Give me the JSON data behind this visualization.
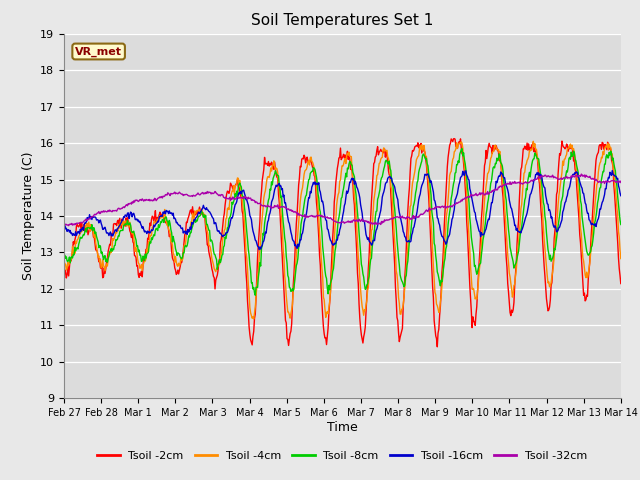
{
  "title": "Soil Temperatures Set 1",
  "xlabel": "Time",
  "ylabel": "Soil Temperature (C)",
  "ylim": [
    9.0,
    19.0
  ],
  "yticks": [
    9.0,
    10.0,
    11.0,
    12.0,
    13.0,
    14.0,
    15.0,
    16.0,
    17.0,
    18.0,
    19.0
  ],
  "x_tick_labels": [
    "Feb 27",
    "Feb 28",
    "Mar 1",
    "Mar 2",
    "Mar 3",
    "Mar 4",
    "Mar 5",
    "Mar 6",
    "Mar 7",
    "Mar 8",
    "Mar 9",
    "Mar 10",
    "Mar 11",
    "Mar 12",
    "Mar 13",
    "Mar 14"
  ],
  "annotation_text": "VR_met",
  "annotation_color": "#8B0000",
  "annotation_bg": "#FFFACD",
  "annotation_border": "#8B6914",
  "legend_labels": [
    "Tsoil -2cm",
    "Tsoil -4cm",
    "Tsoil -8cm",
    "Tsoil -16cm",
    "Tsoil -32cm"
  ],
  "line_colors": [
    "#FF0000",
    "#FF8C00",
    "#00CC00",
    "#0000CC",
    "#AA00AA"
  ],
  "bg_color": "#E8E8E8",
  "plot_bg": "#DCDCDC",
  "grid_color": "#FFFFFF",
  "n_days": 15,
  "samples_per_day": 48
}
